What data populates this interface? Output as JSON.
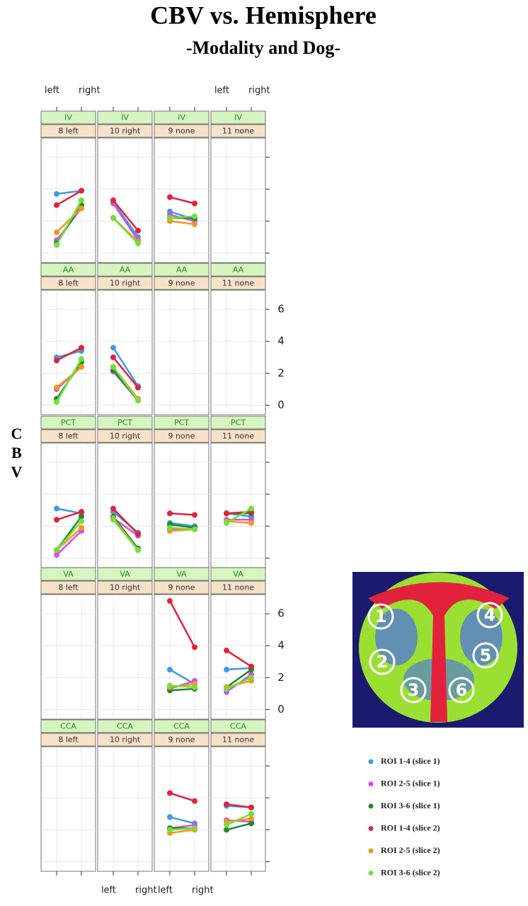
{
  "chart_data": {
    "type": "line",
    "title": "CBV vs. Hemisphere",
    "subtitle": "-Modality and Dog-",
    "ylabel": "CBV",
    "categories": [
      "left",
      "right"
    ],
    "ylim": [
      -0.6,
      7.2
    ],
    "yticks": [
      0,
      2,
      4,
      6
    ],
    "grid": true,
    "series": [
      {
        "name": "ROI 1-4 (slice 1)",
        "color": "#3d9be9"
      },
      {
        "name": "ROI 2-5 (slice 1)",
        "color": "#cf52e3"
      },
      {
        "name": "ROI 3-6 (slice 1)",
        "color": "#1e8a2a"
      },
      {
        "name": "ROI 1-4 (slice 2)",
        "color": "#e2223c"
      },
      {
        "name": "ROI 2-5 (slice 2)",
        "color": "#f7951e"
      },
      {
        "name": "ROI 3-6 (slice 2)",
        "color": "#72e03a"
      }
    ],
    "panels": [
      {
        "strip": "IV",
        "dog": "8 left",
        "values": [
          [
            3.7,
            3.9
          ],
          [
            0.8,
            2.8
          ],
          [
            0.6,
            3.0
          ],
          [
            3.0,
            3.9
          ],
          [
            1.3,
            2.8
          ],
          [
            0.5,
            3.3
          ]
        ]
      },
      {
        "strip": "IV",
        "dog": "10 right",
        "values": [
          [
            3.2,
            1.0
          ],
          [
            3.1,
            0.8
          ],
          [
            2.2,
            0.7
          ],
          [
            3.3,
            1.4
          ],
          [
            2.2,
            0.7
          ],
          [
            2.2,
            0.6
          ]
        ]
      },
      {
        "strip": "IV",
        "dog": "9 none",
        "values": [
          [
            2.6,
            2.1
          ],
          [
            2.4,
            2.0
          ],
          [
            2.2,
            2.2
          ],
          [
            3.5,
            3.1
          ],
          [
            2.0,
            1.8
          ],
          [
            2.2,
            2.3
          ]
        ]
      },
      {
        "strip": "IV",
        "dog": "11 none"
      },
      {
        "strip": "AA",
        "dog": "8 left",
        "values": [
          [
            3.0,
            3.4
          ],
          [
            1.0,
            2.4
          ],
          [
            0.4,
            2.7
          ],
          [
            2.8,
            3.6
          ],
          [
            1.1,
            2.4
          ],
          [
            0.2,
            2.9
          ]
        ]
      },
      {
        "strip": "AA",
        "dog": "10 right",
        "values": [
          [
            3.6,
            1.2
          ],
          [
            2.1,
            0.3
          ],
          [
            2.2,
            0.3
          ],
          [
            3.0,
            1.1
          ],
          [
            2.4,
            0.4
          ],
          [
            2.4,
            0.3
          ]
        ]
      },
      {
        "strip": "AA",
        "dog": "9 none"
      },
      {
        "strip": "AA",
        "dog": "11 none"
      },
      {
        "strip": "PCT",
        "dog": "8 left",
        "values": [
          [
            3.1,
            2.8
          ],
          [
            0.2,
            1.7
          ],
          [
            0.5,
            2.6
          ],
          [
            2.4,
            2.9
          ],
          [
            0.5,
            1.9
          ],
          [
            0.5,
            2.3
          ]
        ]
      },
      {
        "strip": "PCT",
        "dog": "10 right",
        "values": [
          [
            2.9,
            1.6
          ],
          [
            2.5,
            1.4
          ],
          [
            2.6,
            0.6
          ],
          [
            3.1,
            1.5
          ],
          [
            2.5,
            0.5
          ],
          [
            2.4,
            0.5
          ]
        ]
      },
      {
        "strip": "PCT",
        "dog": "9 none",
        "values": [
          [
            2.2,
            2.0
          ],
          [
            1.8,
            1.8
          ],
          [
            2.1,
            1.9
          ],
          [
            2.8,
            2.7
          ],
          [
            1.7,
            1.8
          ],
          [
            1.9,
            1.8
          ]
        ]
      },
      {
        "strip": "PCT",
        "dog": "11 none",
        "values": [
          [
            2.8,
            2.6
          ],
          [
            2.4,
            2.4
          ],
          [
            2.8,
            2.8
          ],
          [
            2.8,
            2.9
          ],
          [
            2.3,
            2.2
          ],
          [
            2.2,
            3.1
          ]
        ]
      },
      {
        "strip": "VA",
        "dog": "8 left"
      },
      {
        "strip": "VA",
        "dog": "10 right"
      },
      {
        "strip": "VA",
        "dog": "9 none",
        "values": [
          [
            2.5,
            1.6
          ],
          [
            1.3,
            1.8
          ],
          [
            1.2,
            1.3
          ],
          [
            6.8,
            3.9
          ],
          [
            1.4,
            1.6
          ],
          [
            1.5,
            1.4
          ]
        ]
      },
      {
        "strip": "VA",
        "dog": "11 none",
        "values": [
          [
            2.5,
            2.6
          ],
          [
            1.1,
            2.2
          ],
          [
            1.4,
            2.5
          ],
          [
            3.7,
            2.7
          ],
          [
            1.4,
            1.8
          ],
          [
            1.3,
            2.0
          ]
        ]
      },
      {
        "strip": "CCA",
        "dog": "8 left"
      },
      {
        "strip": "CCA",
        "dog": "10 right"
      },
      {
        "strip": "CCA",
        "dog": "9 none",
        "values": [
          [
            2.8,
            2.4
          ],
          [
            2.1,
            2.3
          ],
          [
            2.1,
            2.1
          ],
          [
            4.3,
            3.8
          ],
          [
            1.8,
            2.0
          ],
          [
            2.0,
            2.1
          ]
        ]
      },
      {
        "strip": "CCA",
        "dog": "11 none",
        "values": [
          [
            3.5,
            3.4
          ],
          [
            2.6,
            2.5
          ],
          [
            2.0,
            2.4
          ],
          [
            3.6,
            3.4
          ],
          [
            2.5,
            2.7
          ],
          [
            2.3,
            3.0
          ]
        ]
      }
    ]
  },
  "roi_image": {
    "labels": [
      "1",
      "2",
      "3",
      "4",
      "5",
      "6"
    ]
  }
}
